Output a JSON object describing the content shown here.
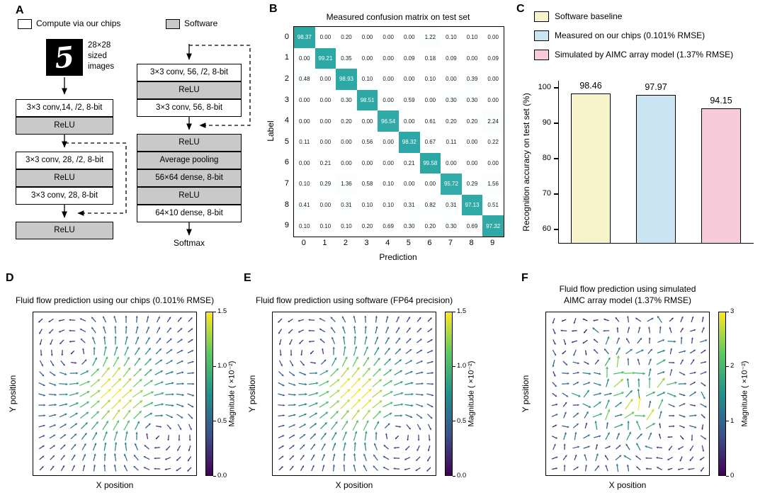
{
  "panels": {
    "A": "A",
    "B": "B",
    "C": "C",
    "D": "D",
    "E": "E",
    "F": "F"
  },
  "panelA": {
    "legend": [
      {
        "label": "Compute via our chips",
        "fill": "#ffffff"
      },
      {
        "label": "Software",
        "fill": "#c9c9c9"
      }
    ],
    "digit": "5",
    "input_caption": "28×28 sized images",
    "left_column": [
      {
        "label": "3×3 conv,14, /2, 8-bit",
        "kind": "chip"
      },
      {
        "label": "ReLU",
        "kind": "software"
      },
      {
        "label": "3×3 conv, 28, /2, 8-bit",
        "kind": "chip"
      },
      {
        "label": "ReLU",
        "kind": "software"
      },
      {
        "label": "3×3 conv, 28, 8-bit",
        "kind": "chip"
      },
      {
        "label": "ReLU",
        "kind": "software"
      }
    ],
    "right_column": [
      {
        "label": "3×3 conv, 56, /2, 8-bit",
        "kind": "chip"
      },
      {
        "label": "ReLU",
        "kind": "software"
      },
      {
        "label": "3×3 conv, 56, 8-bit",
        "kind": "chip"
      },
      {
        "label": "ReLU",
        "kind": "software"
      },
      {
        "label": "Average pooling",
        "kind": "software"
      },
      {
        "label": "56×64 dense, 8-bit",
        "kind": "software"
      },
      {
        "label": "ReLU",
        "kind": "software"
      },
      {
        "label": "64×10 dense, 8-bit",
        "kind": "chip"
      }
    ],
    "output_label": "Softmax"
  },
  "chart_data": [
    {
      "id": "confusion_matrix",
      "panel": "B",
      "type": "heatmap",
      "title": "Measured confusion matrix on test set",
      "xlabel": "Prediction",
      "ylabel": "Label",
      "categories": [
        "0",
        "1",
        "2",
        "3",
        "4",
        "5",
        "6",
        "7",
        "8",
        "9"
      ],
      "values": [
        [
          98.37,
          0.0,
          0.2,
          0.0,
          0.0,
          0.0,
          1.22,
          0.1,
          0.1,
          0.0
        ],
        [
          0.0,
          99.21,
          0.35,
          0.0,
          0.0,
          0.09,
          0.18,
          0.09,
          0.0,
          0.09
        ],
        [
          0.48,
          0.0,
          98.93,
          0.1,
          0.0,
          0.0,
          0.1,
          0.0,
          0.39,
          0.0
        ],
        [
          0.0,
          0.0,
          0.3,
          98.51,
          0.0,
          0.59,
          0.0,
          0.3,
          0.3,
          0.0
        ],
        [
          0.0,
          0.0,
          0.2,
          0.0,
          96.54,
          0.0,
          0.61,
          0.2,
          0.2,
          2.24
        ],
        [
          0.11,
          0.0,
          0.0,
          0.56,
          0.0,
          98.32,
          0.67,
          0.11,
          0.0,
          0.22
        ],
        [
          0.0,
          0.21,
          0.0,
          0.0,
          0.0,
          0.21,
          99.58,
          0.0,
          0.0,
          0.0
        ],
        [
          0.1,
          0.29,
          1.36,
          0.58,
          0.1,
          0.0,
          0.0,
          95.72,
          0.29,
          1.56
        ],
        [
          0.41,
          0.0,
          0.31,
          0.1,
          0.1,
          0.31,
          0.82,
          0.31,
          97.13,
          0.51
        ],
        [
          0.1,
          0.1,
          0.1,
          0.2,
          0.69,
          0.3,
          0.2,
          0.3,
          0.69,
          97.32
        ]
      ],
      "high_color": "#2aa7a4",
      "low_color": "#ffffff"
    },
    {
      "id": "accuracy_bar",
      "panel": "C",
      "type": "bar",
      "ylabel": "Recognition accuracy on test set (%)",
      "ylim": [
        56,
        102
      ],
      "yticks": [
        60,
        70,
        80,
        90,
        100
      ],
      "categories": [
        "Software baseline",
        "Measured on our chips (0.101% RMSE)",
        "Simulated by AIMC array model (1.37% RMSE)"
      ],
      "values": [
        98.46,
        97.97,
        94.15
      ],
      "bar_colors": [
        "#f7f3cb",
        "#cbe5f2",
        "#f8cbdb"
      ],
      "legend_position": "top-left",
      "grid": false
    },
    {
      "id": "quiver_chips",
      "panel": "D",
      "type": "quiver",
      "title_lines": [
        "Fluid flow prediction using our chips (0.101% RMSE)"
      ],
      "xlabel": "X position",
      "ylabel": "Y position",
      "colorbar_label": "Magnitude ( ×10⁻²)",
      "colorbar_ticks": [
        0,
        0.5,
        1,
        1.5
      ],
      "colorbar_tick_labels": [
        "0.0",
        "0.5",
        "1.0",
        "1.5"
      ],
      "grid": [
        15,
        15
      ],
      "flow_pattern": "diagonal jet from lower-left to upper-right between two counter-rotating vortices; low-magnitude circulation elsewhere",
      "seed": 5,
      "noise": 0.04
    },
    {
      "id": "quiver_software",
      "panel": "E",
      "type": "quiver",
      "title_lines": [
        "Fluid flow prediction using software (FP64 precision)"
      ],
      "xlabel": "X position",
      "ylabel": "Y position",
      "colorbar_label": "Magnitude ( ×10⁻²)",
      "colorbar_ticks": [
        0,
        0.5,
        1,
        1.5
      ],
      "colorbar_tick_labels": [
        "0.0",
        "0.5",
        "1.0",
        "1.5"
      ],
      "grid": [
        15,
        15
      ],
      "flow_pattern": "same diagonal jet field as chips panel, reference solution",
      "seed": 5,
      "noise": 0
    },
    {
      "id": "quiver_aimc_model",
      "panel": "F",
      "type": "quiver",
      "title_lines": [
        "Fluid flow prediction using simulated",
        "AIMC array model (1.37% RMSE)"
      ],
      "xlabel": "X position",
      "ylabel": "Y position",
      "colorbar_label": "Magnitude ( ×10⁻²)",
      "colorbar_ticks": [
        0,
        1,
        2,
        3
      ],
      "colorbar_tick_labels": [
        "0",
        "1",
        "2",
        "3"
      ],
      "grid": [
        15,
        15
      ],
      "flow_pattern": "noisy distorted version of the jet field with larger scattered magnitudes",
      "seed": 9,
      "noise": 0.65
    }
  ]
}
